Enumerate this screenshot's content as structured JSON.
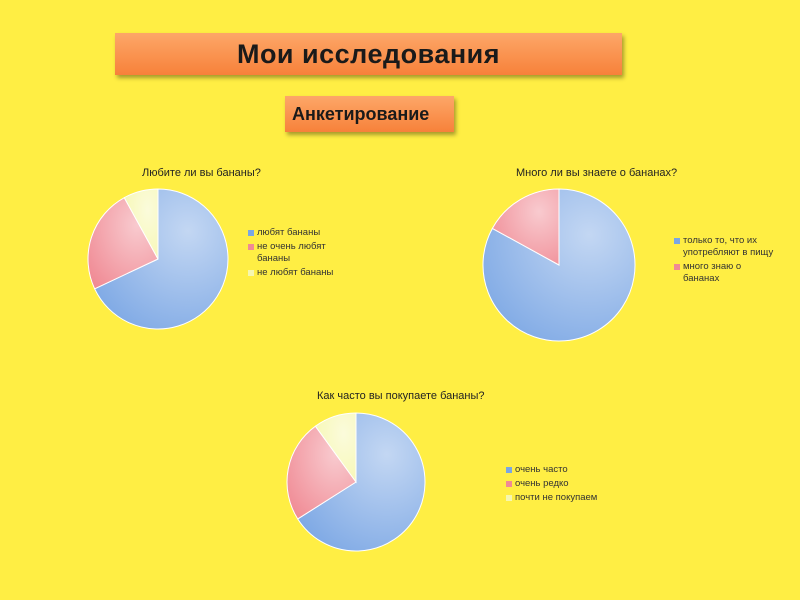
{
  "header": {
    "title": "Мои исследования",
    "subtitle": "Анкетирование"
  },
  "chart_data": [
    {
      "type": "pie",
      "title": "Любите ли вы бананы?",
      "categories": [
        "любят бананы",
        "не очень любят бананы",
        "не любят бананы"
      ],
      "values": [
        68,
        24,
        8
      ],
      "colors": [
        "#7aa6e4",
        "#f08a94",
        "#f6f7b0"
      ]
    },
    {
      "type": "pie",
      "title": "Много ли вы знаете о бананах?",
      "categories": [
        "только то, что их употребляют в пищу",
        "много знаю о бананах"
      ],
      "values": [
        83,
        17
      ],
      "colors": [
        "#7aa6e4",
        "#f08a94"
      ]
    },
    {
      "type": "pie",
      "title": "Как часто вы покупаете бананы?",
      "categories": [
        "очень часто",
        "очень редко",
        "почти не покупаем"
      ],
      "values": [
        66,
        24,
        10
      ],
      "colors": [
        "#7aa6e4",
        "#f08a94",
        "#f6f7b0"
      ]
    }
  ]
}
